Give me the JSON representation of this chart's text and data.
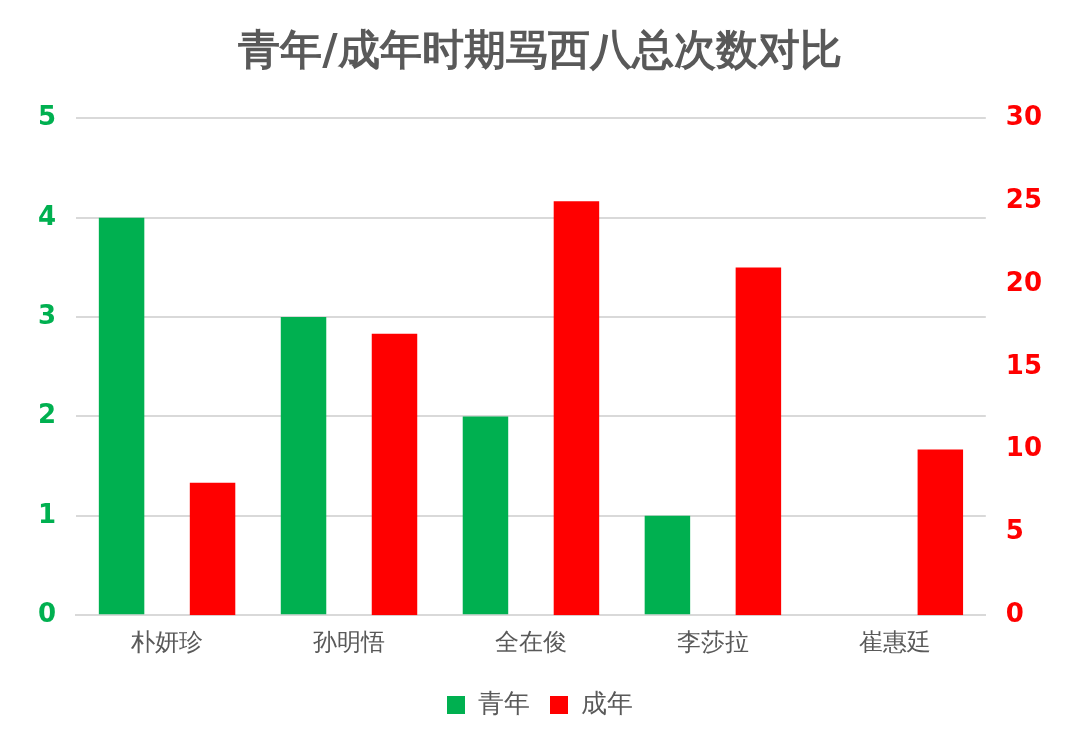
{
  "chart_data": {
    "type": "bar",
    "title": "青年/成年时期骂西八总次数对比",
    "categories": [
      "朴妍珍",
      "孙明悟",
      "全在俊",
      "李莎拉",
      "崔惠廷"
    ],
    "series": [
      {
        "name": "青年",
        "color": "#00b050",
        "values": [
          4,
          3,
          2,
          1,
          0
        ]
      },
      {
        "name": "成年",
        "color": "#ff0000",
        "values": [
          8,
          17,
          25,
          21,
          10
        ],
        "axis": "y2"
      }
    ],
    "ylim": [
      0,
      5
    ],
    "yticks": [
      0,
      1,
      2,
      3,
      4,
      5
    ],
    "y2lim": [
      0,
      30
    ],
    "y2ticks": [
      0,
      5,
      10,
      15,
      20,
      25,
      30
    ],
    "grid": "y",
    "legend": "bottom"
  }
}
